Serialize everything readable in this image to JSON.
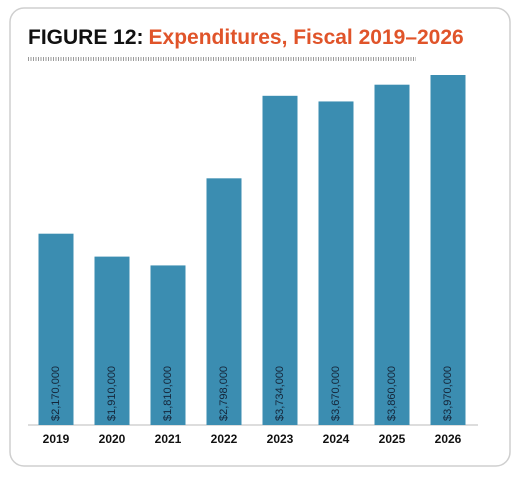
{
  "chart_data": {
    "type": "bar",
    "title_label": "FIGURE 12:",
    "title": "Expenditures, Fiscal 2019–2026",
    "categories": [
      "2019",
      "2020",
      "2021",
      "2022",
      "2023",
      "2024",
      "2025",
      "2026"
    ],
    "values": [
      2170000,
      1910000,
      1810000,
      2798000,
      3734000,
      3670000,
      3860000,
      3970000
    ],
    "value_labels": [
      "$2,170,000",
      "$1,910,000",
      "$1,810,000",
      "$2,798,000",
      "$3,734,000",
      "$3,670,000",
      "$3,860,000",
      "$3,970,000"
    ],
    "color": "#3b8db1"
  }
}
